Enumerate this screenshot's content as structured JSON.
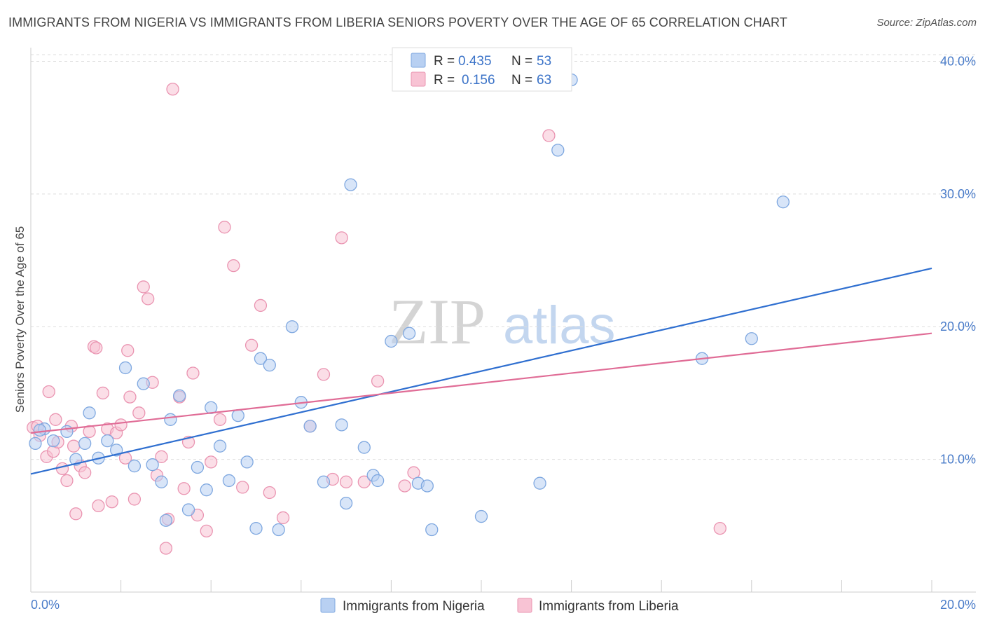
{
  "title": "IMMIGRANTS FROM NIGERIA VS IMMIGRANTS FROM LIBERIA SENIORS POVERTY OVER THE AGE OF 65 CORRELATION CHART",
  "source": "Source: ZipAtlas.com",
  "watermark": {
    "zip": "ZIP",
    "atlas": "atlas"
  },
  "colors": {
    "nigeria_fill": "#b8d0f2",
    "nigeria_stroke": "#7fa8e0",
    "nigeria_line": "#2f6fd0",
    "liberia_fill": "#f8c3d4",
    "liberia_stroke": "#ea94b1",
    "liberia_line": "#e06c96",
    "grid": "#dddddd",
    "tick": "#4a7cc9"
  },
  "legend": {
    "rows": [
      {
        "r_label": "R = ",
        "r_value": "0.435",
        "n_label": "N = ",
        "n_value": "53"
      },
      {
        "r_label": "R = ",
        "r_value": "0.156",
        "n_label": "N = ",
        "n_value": "63"
      }
    ]
  },
  "chart_data": {
    "type": "scatter",
    "title": "IMMIGRANTS FROM NIGERIA VS IMMIGRANTS FROM LIBERIA SENIORS POVERTY OVER THE AGE OF 65 CORRELATION CHART",
    "xlabel": "",
    "ylabel": "Seniors Poverty Over the Age of 65",
    "xlim": [
      0,
      20
    ],
    "ylim": [
      0,
      40.5
    ],
    "x_tick_labels": [
      "0.0%",
      "20.0%"
    ],
    "y_ticks": [
      10,
      20,
      30,
      40
    ],
    "y_tick_labels": [
      "10.0%",
      "20.0%",
      "30.0%",
      "40.0%"
    ],
    "grid": true,
    "legend_position": "top-center",
    "series": [
      {
        "name": "Immigrants from Nigeria",
        "R": 0.435,
        "N": 53,
        "trend": {
          "x": [
            0,
            20
          ],
          "y": [
            8.9,
            24.4
          ]
        },
        "points": [
          [
            0.1,
            11.2
          ],
          [
            0.3,
            12.3
          ],
          [
            0.5,
            11.4
          ],
          [
            0.8,
            12.1
          ],
          [
            1.0,
            10.0
          ],
          [
            1.2,
            11.2
          ],
          [
            1.3,
            13.5
          ],
          [
            1.5,
            10.1
          ],
          [
            1.7,
            11.4
          ],
          [
            1.9,
            10.7
          ],
          [
            2.1,
            16.9
          ],
          [
            2.3,
            9.5
          ],
          [
            2.5,
            15.7
          ],
          [
            2.7,
            9.6
          ],
          [
            2.9,
            8.3
          ],
          [
            3.0,
            5.4
          ],
          [
            3.1,
            13.0
          ],
          [
            3.3,
            14.8
          ],
          [
            3.5,
            6.2
          ],
          [
            3.7,
            9.4
          ],
          [
            3.9,
            7.7
          ],
          [
            4.0,
            13.9
          ],
          [
            4.2,
            11.0
          ],
          [
            4.4,
            8.4
          ],
          [
            4.6,
            13.3
          ],
          [
            4.8,
            9.8
          ],
          [
            5.0,
            4.8
          ],
          [
            5.1,
            17.6
          ],
          [
            5.3,
            17.1
          ],
          [
            5.5,
            4.7
          ],
          [
            5.8,
            20.0
          ],
          [
            6.0,
            14.3
          ],
          [
            6.2,
            12.5
          ],
          [
            6.5,
            8.3
          ],
          [
            6.9,
            12.6
          ],
          [
            7.0,
            6.7
          ],
          [
            7.1,
            30.7
          ],
          [
            7.4,
            10.9
          ],
          [
            7.6,
            8.8
          ],
          [
            7.7,
            8.4
          ],
          [
            8.0,
            18.9
          ],
          [
            8.4,
            19.5
          ],
          [
            8.6,
            8.2
          ],
          [
            8.8,
            8.0
          ],
          [
            8.9,
            4.7
          ],
          [
            10.0,
            5.7
          ],
          [
            11.3,
            8.2
          ],
          [
            11.7,
            33.3
          ],
          [
            12.0,
            38.6
          ],
          [
            14.9,
            17.6
          ],
          [
            16.0,
            19.1
          ],
          [
            16.7,
            29.4
          ],
          [
            0.2,
            12.2
          ]
        ]
      },
      {
        "name": "Immigrants from Liberia",
        "R": 0.156,
        "N": 63,
        "trend": {
          "x": [
            0,
            20
          ],
          "y": [
            12.0,
            19.5
          ]
        },
        "points": [
          [
            0.05,
            12.4
          ],
          [
            0.2,
            11.8
          ],
          [
            0.35,
            10.2
          ],
          [
            0.5,
            10.6
          ],
          [
            0.6,
            11.3
          ],
          [
            0.7,
            9.3
          ],
          [
            0.8,
            8.4
          ],
          [
            0.9,
            12.5
          ],
          [
            1.0,
            5.9
          ],
          [
            1.1,
            9.5
          ],
          [
            1.2,
            9.0
          ],
          [
            1.3,
            12.1
          ],
          [
            1.4,
            18.5
          ],
          [
            1.5,
            6.5
          ],
          [
            1.6,
            15.0
          ],
          [
            1.7,
            12.3
          ],
          [
            1.8,
            6.8
          ],
          [
            1.9,
            12.0
          ],
          [
            2.0,
            12.6
          ],
          [
            2.1,
            10.1
          ],
          [
            2.2,
            14.7
          ],
          [
            2.3,
            7.0
          ],
          [
            2.4,
            13.5
          ],
          [
            2.5,
            23.0
          ],
          [
            2.6,
            22.1
          ],
          [
            2.7,
            15.8
          ],
          [
            2.8,
            8.8
          ],
          [
            2.9,
            10.2
          ],
          [
            3.0,
            3.3
          ],
          [
            3.05,
            5.5
          ],
          [
            3.15,
            37.9
          ],
          [
            3.3,
            14.7
          ],
          [
            3.4,
            7.8
          ],
          [
            3.5,
            11.3
          ],
          [
            3.6,
            16.5
          ],
          [
            3.7,
            5.8
          ],
          [
            3.9,
            4.6
          ],
          [
            4.0,
            9.8
          ],
          [
            4.2,
            13.0
          ],
          [
            4.3,
            27.5
          ],
          [
            4.5,
            24.6
          ],
          [
            4.7,
            7.9
          ],
          [
            4.9,
            18.6
          ],
          [
            5.1,
            21.6
          ],
          [
            5.3,
            7.5
          ],
          [
            5.6,
            5.6
          ],
          [
            6.2,
            12.5
          ],
          [
            6.5,
            16.4
          ],
          [
            6.7,
            8.5
          ],
          [
            6.9,
            26.7
          ],
          [
            7.0,
            8.3
          ],
          [
            7.4,
            8.3
          ],
          [
            7.7,
            15.9
          ],
          [
            8.3,
            8.0
          ],
          [
            8.5,
            9.0
          ],
          [
            11.5,
            34.4
          ],
          [
            15.3,
            4.8
          ],
          [
            0.4,
            15.1
          ],
          [
            0.55,
            13.0
          ],
          [
            0.95,
            11.0
          ],
          [
            1.45,
            18.4
          ],
          [
            2.15,
            18.2
          ],
          [
            0.15,
            12.5
          ]
        ]
      }
    ]
  }
}
